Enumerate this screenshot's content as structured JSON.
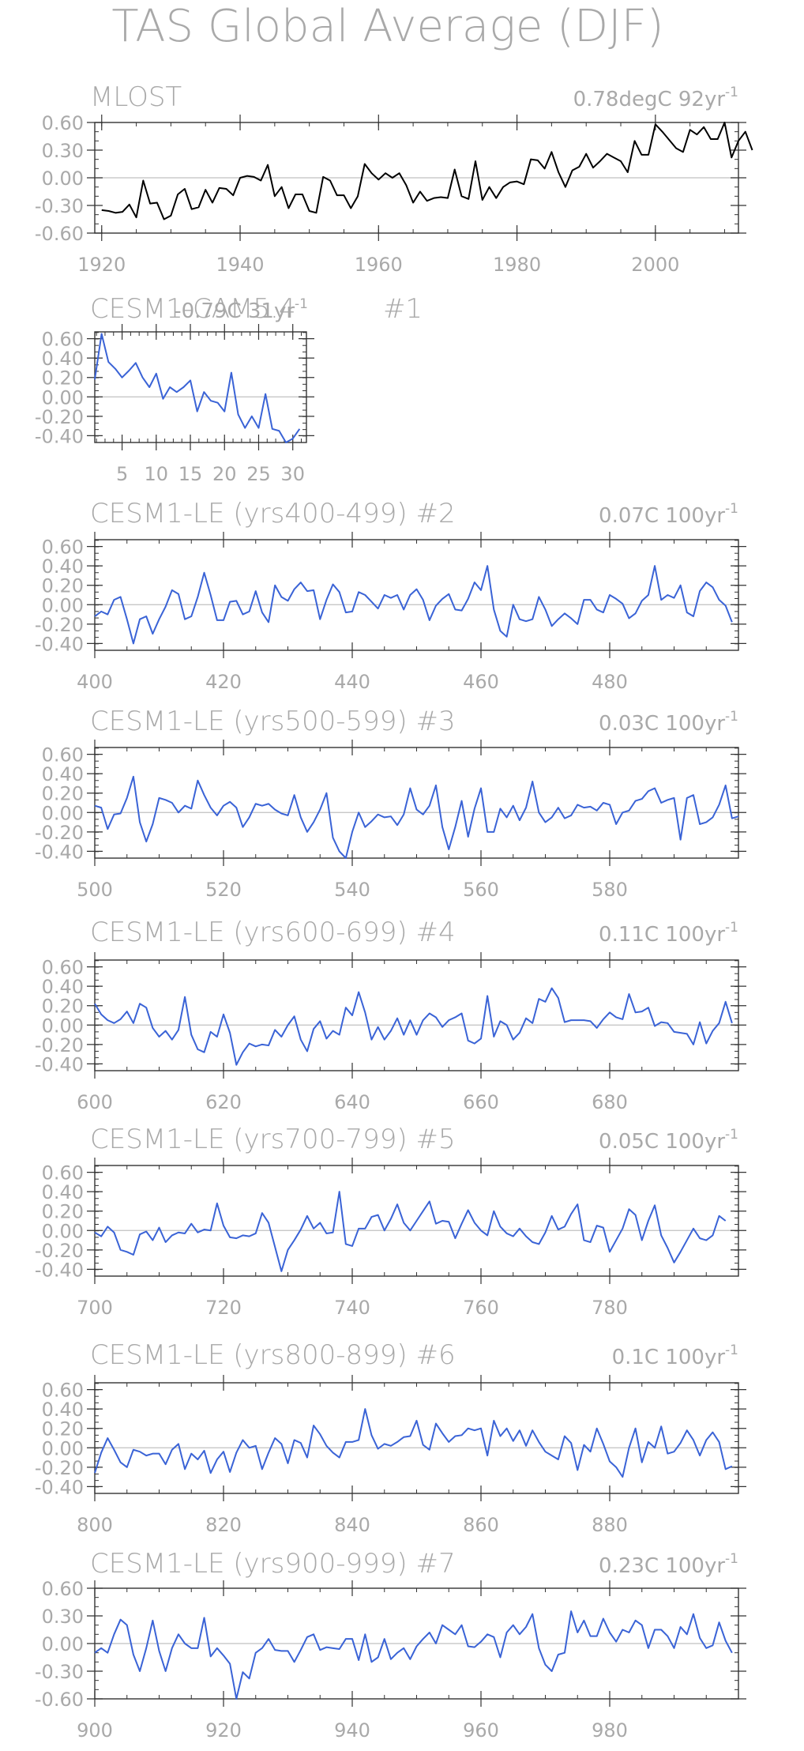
{
  "page": {
    "title": "TAS Global Average (DJF)"
  },
  "colors": {
    "text": "#a9a9a9",
    "frame": "#333333",
    "zero": "#c0c0c0",
    "obs": "#000000",
    "model": "#3a63d6"
  },
  "chart_data": [
    {
      "type": "line",
      "title_left": "MLOST",
      "title_right": "0.78degC 92yr",
      "title_right_sup": "-1",
      "ylim": [
        -0.6,
        0.6
      ],
      "yticks": [
        0.6,
        0.3,
        0.0,
        -0.3,
        -0.6
      ],
      "ytick_labels": [
        "0.60",
        "0.30",
        "0.00",
        "-0.30",
        "-0.60"
      ],
      "xlim": [
        1919,
        2012
      ],
      "xticks": [
        1920,
        1940,
        1960,
        1980,
        2000
      ],
      "xtick_labels": [
        "1920",
        "1940",
        "1960",
        "1980",
        "2000"
      ],
      "x_start": 1920,
      "series": [
        {
          "color": "#000000",
          "values": [
            -0.35,
            -0.36,
            -0.38,
            -0.37,
            -0.29,
            -0.43,
            -0.03,
            -0.28,
            -0.27,
            -0.45,
            -0.41,
            -0.18,
            -0.12,
            -0.34,
            -0.32,
            -0.13,
            -0.27,
            -0.11,
            -0.12,
            -0.19,
            0.0,
            0.02,
            0.01,
            -0.03,
            0.14,
            -0.2,
            -0.1,
            -0.33,
            -0.18,
            -0.18,
            -0.36,
            -0.38,
            0.01,
            -0.03,
            -0.19,
            -0.19,
            -0.33,
            -0.2,
            0.15,
            0.05,
            -0.02,
            0.05,
            0.0,
            0.05,
            -0.08,
            -0.27,
            -0.15,
            -0.25,
            -0.22,
            -0.21,
            -0.22,
            0.09,
            -0.2,
            -0.23,
            0.18,
            -0.24,
            -0.1,
            -0.22,
            -0.1,
            -0.05,
            -0.04,
            -0.07,
            0.2,
            0.19,
            0.1,
            0.28,
            0.06,
            -0.1,
            0.08,
            0.12,
            0.26,
            0.11,
            0.18,
            0.26,
            0.22,
            0.18,
            0.06,
            0.4,
            0.25,
            0.25,
            0.58,
            0.5,
            0.41,
            0.32,
            0.28,
            0.52,
            0.47,
            0.55,
            0.42,
            0.42,
            0.6,
            0.22,
            0.4,
            0.5,
            0.3
          ]
        }
      ]
    },
    {
      "type": "line",
      "title_left": "CESM1-CAM5.4",
      "title_mid": "#1",
      "title_right": "-0.79C 31yr",
      "title_right_sup": "-1",
      "ylim": [
        -0.47,
        0.67
      ],
      "yticks": [
        0.6,
        0.4,
        0.2,
        0.0,
        -0.2,
        -0.4
      ],
      "ytick_labels": [
        "0.60",
        "0.40",
        "0.20",
        "0.00",
        "-0.20",
        "-0.40"
      ],
      "xlim": [
        1,
        32
      ],
      "xticks": [
        5,
        10,
        15,
        20,
        25,
        30
      ],
      "xtick_labels": [
        "5",
        "10",
        "15",
        "20",
        "25",
        "30"
      ],
      "x_start": 1,
      "series": [
        {
          "color": "#3a63d6",
          "values": [
            0.18,
            0.65,
            0.36,
            0.29,
            0.2,
            0.27,
            0.35,
            0.2,
            0.1,
            0.24,
            -0.02,
            0.1,
            0.05,
            0.1,
            0.17,
            -0.15,
            0.05,
            -0.04,
            -0.06,
            -0.15,
            0.25,
            -0.18,
            -0.32,
            -0.2,
            -0.32,
            0.03,
            -0.33,
            -0.35,
            -0.47,
            -0.43,
            -0.33
          ]
        }
      ]
    },
    {
      "type": "line",
      "title_left": "CESM1-LE (yrs400-499) #2",
      "title_right": "0.07C 100yr",
      "title_right_sup": "-1",
      "ylim": [
        -0.47,
        0.67
      ],
      "yticks": [
        0.6,
        0.4,
        0.2,
        0.0,
        -0.2,
        -0.4
      ],
      "ytick_labels": [
        "0.60",
        "0.40",
        "0.20",
        "0.00",
        "-0.20",
        "-0.40"
      ],
      "xlim": [
        400,
        500
      ],
      "xticks": [
        400,
        420,
        440,
        460,
        480
      ],
      "xtick_labels": [
        "400",
        "420",
        "440",
        "460",
        "480"
      ],
      "x_start": 400,
      "series": [
        {
          "color": "#3a63d6",
          "values": [
            -0.12,
            -0.07,
            -0.1,
            0.05,
            0.08,
            -0.15,
            -0.4,
            -0.15,
            -0.12,
            -0.3,
            -0.15,
            -0.02,
            0.15,
            0.11,
            -0.15,
            -0.12,
            0.08,
            0.33,
            0.1,
            -0.16,
            -0.16,
            0.03,
            0.04,
            -0.1,
            -0.07,
            0.14,
            -0.08,
            -0.18,
            0.2,
            0.08,
            0.04,
            0.16,
            0.23,
            0.14,
            0.15,
            -0.15,
            0.05,
            0.21,
            0.13,
            -0.08,
            -0.07,
            0.13,
            0.1,
            0.03,
            -0.04,
            0.1,
            0.07,
            0.1,
            -0.05,
            0.1,
            0.16,
            0.05,
            -0.16,
            -0.01,
            0.06,
            0.11,
            -0.05,
            -0.06,
            0.06,
            0.23,
            0.15,
            0.4,
            -0.05,
            -0.27,
            -0.33,
            0.0,
            -0.15,
            -0.17,
            -0.15,
            0.08,
            -0.05,
            -0.22,
            -0.15,
            -0.09,
            -0.14,
            -0.2,
            0.05,
            0.05,
            -0.05,
            -0.08,
            0.1,
            0.06,
            0.01,
            -0.14,
            -0.09,
            0.04,
            0.1,
            0.4,
            0.05,
            0.1,
            0.07,
            0.2,
            -0.08,
            -0.12,
            0.14,
            0.23,
            0.18,
            0.05,
            -0.01,
            -0.18
          ]
        }
      ]
    },
    {
      "type": "line",
      "title_left": "CESM1-LE (yrs500-599) #3",
      "title_right": "0.03C 100yr",
      "title_right_sup": "-1",
      "ylim": [
        -0.47,
        0.67
      ],
      "yticks": [
        0.6,
        0.4,
        0.2,
        0.0,
        -0.2,
        -0.4
      ],
      "ytick_labels": [
        "0.60",
        "0.40",
        "0.20",
        "0.00",
        "-0.20",
        "-0.40"
      ],
      "xlim": [
        500,
        600
      ],
      "xticks": [
        500,
        520,
        540,
        560,
        580
      ],
      "xtick_labels": [
        "500",
        "520",
        "540",
        "560",
        "580"
      ],
      "x_start": 500,
      "series": [
        {
          "color": "#3a63d6",
          "values": [
            0.07,
            0.05,
            -0.17,
            -0.02,
            -0.01,
            0.15,
            0.37,
            -0.1,
            -0.3,
            -0.12,
            0.15,
            0.13,
            0.1,
            0.0,
            0.07,
            0.04,
            0.33,
            0.18,
            0.05,
            -0.03,
            0.07,
            0.11,
            0.05,
            -0.15,
            -0.05,
            0.09,
            0.07,
            0.09,
            0.03,
            -0.01,
            -0.03,
            0.18,
            -0.05,
            -0.2,
            -0.1,
            0.03,
            0.2,
            -0.26,
            -0.4,
            -0.47,
            -0.2,
            0.0,
            -0.15,
            -0.09,
            -0.02,
            -0.05,
            -0.04,
            -0.13,
            -0.02,
            0.25,
            0.03,
            -0.02,
            0.07,
            0.28,
            -0.15,
            -0.38,
            -0.15,
            0.12,
            -0.25,
            0.04,
            0.25,
            -0.2,
            -0.2,
            0.04,
            -0.05,
            0.07,
            -0.08,
            0.05,
            0.32,
            0.0,
            -0.1,
            -0.05,
            0.05,
            -0.06,
            -0.03,
            0.08,
            0.05,
            0.06,
            0.02,
            0.1,
            0.08,
            -0.12,
            0.0,
            0.02,
            0.12,
            0.14,
            0.22,
            0.25,
            0.1,
            0.13,
            0.15,
            -0.28,
            0.15,
            0.18,
            -0.12,
            -0.1,
            -0.05,
            0.08,
            0.28,
            -0.06,
            -0.04
          ]
        }
      ]
    },
    {
      "type": "line",
      "title_left": "CESM1-LE (yrs600-699) #4",
      "title_right": "0.11C 100yr",
      "title_right_sup": "-1",
      "ylim": [
        -0.47,
        0.67
      ],
      "yticks": [
        0.6,
        0.4,
        0.2,
        0.0,
        -0.2,
        -0.4
      ],
      "ytick_labels": [
        "0.60",
        "0.40",
        "0.20",
        "0.00",
        "-0.20",
        "-0.40"
      ],
      "xlim": [
        600,
        700
      ],
      "xticks": [
        600,
        620,
        640,
        660,
        680
      ],
      "xtick_labels": [
        "600",
        "620",
        "640",
        "660",
        "680"
      ],
      "x_start": 600,
      "series": [
        {
          "color": "#3a63d6",
          "values": [
            0.22,
            0.11,
            0.05,
            0.02,
            0.06,
            0.14,
            0.02,
            0.22,
            0.18,
            -0.03,
            -0.12,
            -0.06,
            -0.15,
            -0.05,
            0.29,
            -0.1,
            -0.25,
            -0.28,
            -0.07,
            -0.12,
            0.11,
            -0.08,
            -0.41,
            -0.28,
            -0.19,
            -0.22,
            -0.2,
            -0.21,
            -0.05,
            -0.12,
            0.0,
            0.09,
            -0.15,
            -0.27,
            -0.04,
            0.04,
            -0.14,
            -0.06,
            -0.1,
            0.18,
            0.1,
            0.34,
            0.13,
            -0.15,
            -0.02,
            -0.15,
            -0.06,
            0.07,
            -0.1,
            0.05,
            -0.1,
            0.05,
            0.12,
            0.08,
            -0.02,
            0.05,
            0.08,
            0.12,
            -0.16,
            -0.19,
            -0.14,
            0.3,
            -0.12,
            0.04,
            0.0,
            -0.15,
            -0.08,
            0.07,
            0.02,
            0.27,
            0.24,
            0.38,
            0.28,
            0.03,
            0.05,
            0.05,
            0.05,
            0.04,
            -0.03,
            0.06,
            0.13,
            0.08,
            0.06,
            0.32,
            0.13,
            0.14,
            0.18,
            -0.01,
            0.03,
            0.02,
            -0.07,
            -0.08,
            -0.09,
            -0.2,
            0.03,
            -0.19,
            -0.06,
            0.02,
            0.24,
            0.02
          ]
        }
      ]
    },
    {
      "type": "line",
      "title_left": "CESM1-LE (yrs700-799) #5",
      "title_right": "0.05C 100yr",
      "title_right_sup": "-1",
      "ylim": [
        -0.47,
        0.67
      ],
      "yticks": [
        0.6,
        0.4,
        0.2,
        0.0,
        -0.2,
        -0.4
      ],
      "ytick_labels": [
        "0.60",
        "0.40",
        "0.20",
        "0.00",
        "-0.20",
        "-0.40"
      ],
      "xlim": [
        700,
        800
      ],
      "xticks": [
        700,
        720,
        740,
        760,
        780
      ],
      "xtick_labels": [
        "700",
        "720",
        "740",
        "760",
        "780"
      ],
      "x_start": 700,
      "series": [
        {
          "color": "#3a63d6",
          "values": [
            -0.02,
            -0.06,
            0.04,
            -0.02,
            -0.2,
            -0.22,
            -0.25,
            -0.04,
            -0.01,
            -0.1,
            0.03,
            -0.12,
            -0.05,
            -0.02,
            -0.03,
            0.07,
            -0.02,
            0.01,
            0.0,
            0.28,
            0.05,
            -0.07,
            -0.08,
            -0.05,
            -0.06,
            -0.03,
            0.18,
            0.08,
            -0.17,
            -0.42,
            -0.2,
            -0.1,
            0.01,
            0.15,
            0.02,
            0.08,
            -0.03,
            -0.02,
            0.4,
            -0.14,
            -0.16,
            0.02,
            0.02,
            0.14,
            0.16,
            0.0,
            0.12,
            0.27,
            0.08,
            0.0,
            0.1,
            0.2,
            0.3,
            0.07,
            0.1,
            0.09,
            -0.08,
            0.07,
            0.21,
            0.08,
            0.0,
            -0.05,
            0.2,
            0.04,
            -0.03,
            -0.06,
            0.02,
            -0.06,
            -0.12,
            -0.14,
            -0.02,
            0.15,
            0.01,
            0.04,
            0.17,
            0.27,
            -0.1,
            -0.12,
            0.05,
            0.03,
            -0.22,
            -0.1,
            0.02,
            0.22,
            0.16,
            -0.1,
            0.1,
            0.26,
            -0.05,
            -0.18,
            -0.33,
            -0.22,
            -0.1,
            0.02,
            -0.08,
            -0.1,
            -0.05,
            0.15,
            0.1
          ]
        }
      ]
    },
    {
      "type": "line",
      "title_left": "CESM1-LE (yrs800-899) #6",
      "title_right": "0.1C 100yr",
      "title_right_sup": "-1",
      "ylim": [
        -0.47,
        0.67
      ],
      "yticks": [
        0.6,
        0.4,
        0.2,
        0.0,
        -0.2,
        -0.4
      ],
      "ytick_labels": [
        "0.60",
        "0.40",
        "0.20",
        "0.00",
        "-0.20",
        "-0.40"
      ],
      "xlim": [
        800,
        900
      ],
      "xticks": [
        800,
        820,
        840,
        860,
        880
      ],
      "xtick_labels": [
        "800",
        "820",
        "840",
        "860",
        "880"
      ],
      "x_start": 800,
      "series": [
        {
          "color": "#3a63d6",
          "values": [
            -0.26,
            -0.05,
            0.1,
            -0.02,
            -0.15,
            -0.2,
            -0.02,
            -0.04,
            -0.08,
            -0.06,
            -0.06,
            -0.17,
            -0.02,
            0.04,
            -0.22,
            -0.06,
            -0.12,
            -0.03,
            -0.26,
            -0.12,
            -0.04,
            -0.25,
            -0.05,
            0.08,
            0.0,
            0.02,
            -0.22,
            -0.05,
            0.1,
            0.04,
            -0.16,
            0.08,
            0.05,
            -0.1,
            0.23,
            0.14,
            0.02,
            -0.05,
            -0.1,
            0.06,
            0.06,
            0.08,
            0.4,
            0.13,
            -0.01,
            0.04,
            0.02,
            0.06,
            0.11,
            0.12,
            0.28,
            0.03,
            -0.02,
            0.25,
            0.15,
            0.06,
            0.12,
            0.13,
            0.2,
            0.18,
            0.2,
            -0.08,
            0.28,
            0.12,
            0.2,
            0.07,
            0.18,
            0.02,
            0.18,
            0.06,
            -0.04,
            -0.08,
            -0.12,
            0.12,
            0.05,
            -0.23,
            0.03,
            -0.04,
            0.2,
            0.04,
            -0.14,
            -0.2,
            -0.3,
            0.0,
            0.2,
            -0.15,
            0.06,
            0.0,
            0.22,
            -0.06,
            -0.04,
            0.05,
            0.18,
            0.08,
            -0.08,
            0.08,
            0.16,
            0.06,
            -0.22,
            -0.19
          ]
        }
      ]
    },
    {
      "type": "line",
      "title_left": "CESM1-LE (yrs900-999) #7",
      "title_right": "0.23C 100yr",
      "title_right_sup": "-1",
      "ylim": [
        -0.6,
        0.6
      ],
      "yticks": [
        0.6,
        0.3,
        0.0,
        -0.3,
        -0.6
      ],
      "ytick_labels": [
        "0.60",
        "0.30",
        "0.00",
        "-0.30",
        "-0.60"
      ],
      "xlim": [
        900,
        1000
      ],
      "xticks": [
        900,
        920,
        940,
        960,
        980
      ],
      "xtick_labels": [
        "900",
        "920",
        "940",
        "960",
        "980"
      ],
      "x_start": 900,
      "series": [
        {
          "color": "#3a63d6",
          "values": [
            -0.1,
            -0.05,
            -0.1,
            0.1,
            0.26,
            0.2,
            -0.12,
            -0.3,
            -0.05,
            0.25,
            -0.08,
            -0.3,
            -0.05,
            0.1,
            0.0,
            -0.05,
            -0.05,
            0.28,
            -0.14,
            -0.05,
            -0.13,
            -0.22,
            -0.6,
            -0.31,
            -0.38,
            -0.1,
            -0.05,
            0.05,
            -0.07,
            -0.08,
            -0.08,
            -0.2,
            -0.07,
            0.07,
            0.1,
            -0.07,
            -0.04,
            -0.05,
            -0.06,
            0.05,
            0.05,
            -0.18,
            0.1,
            -0.2,
            -0.15,
            0.05,
            -0.17,
            -0.1,
            -0.05,
            -0.17,
            -0.03,
            0.05,
            0.12,
            0.0,
            0.2,
            0.15,
            0.1,
            0.2,
            -0.03,
            -0.04,
            0.02,
            0.1,
            0.07,
            -0.15,
            0.12,
            0.2,
            0.1,
            0.18,
            0.32,
            -0.05,
            -0.23,
            -0.3,
            -0.12,
            -0.1,
            0.35,
            0.12,
            0.25,
            0.08,
            0.08,
            0.27,
            0.12,
            0.02,
            0.15,
            0.12,
            0.25,
            0.2,
            -0.05,
            0.15,
            0.15,
            0.08,
            -0.05,
            0.18,
            0.1,
            0.32,
            0.06,
            -0.05,
            -0.02,
            0.23,
            0.03,
            -0.1
          ]
        }
      ]
    }
  ]
}
